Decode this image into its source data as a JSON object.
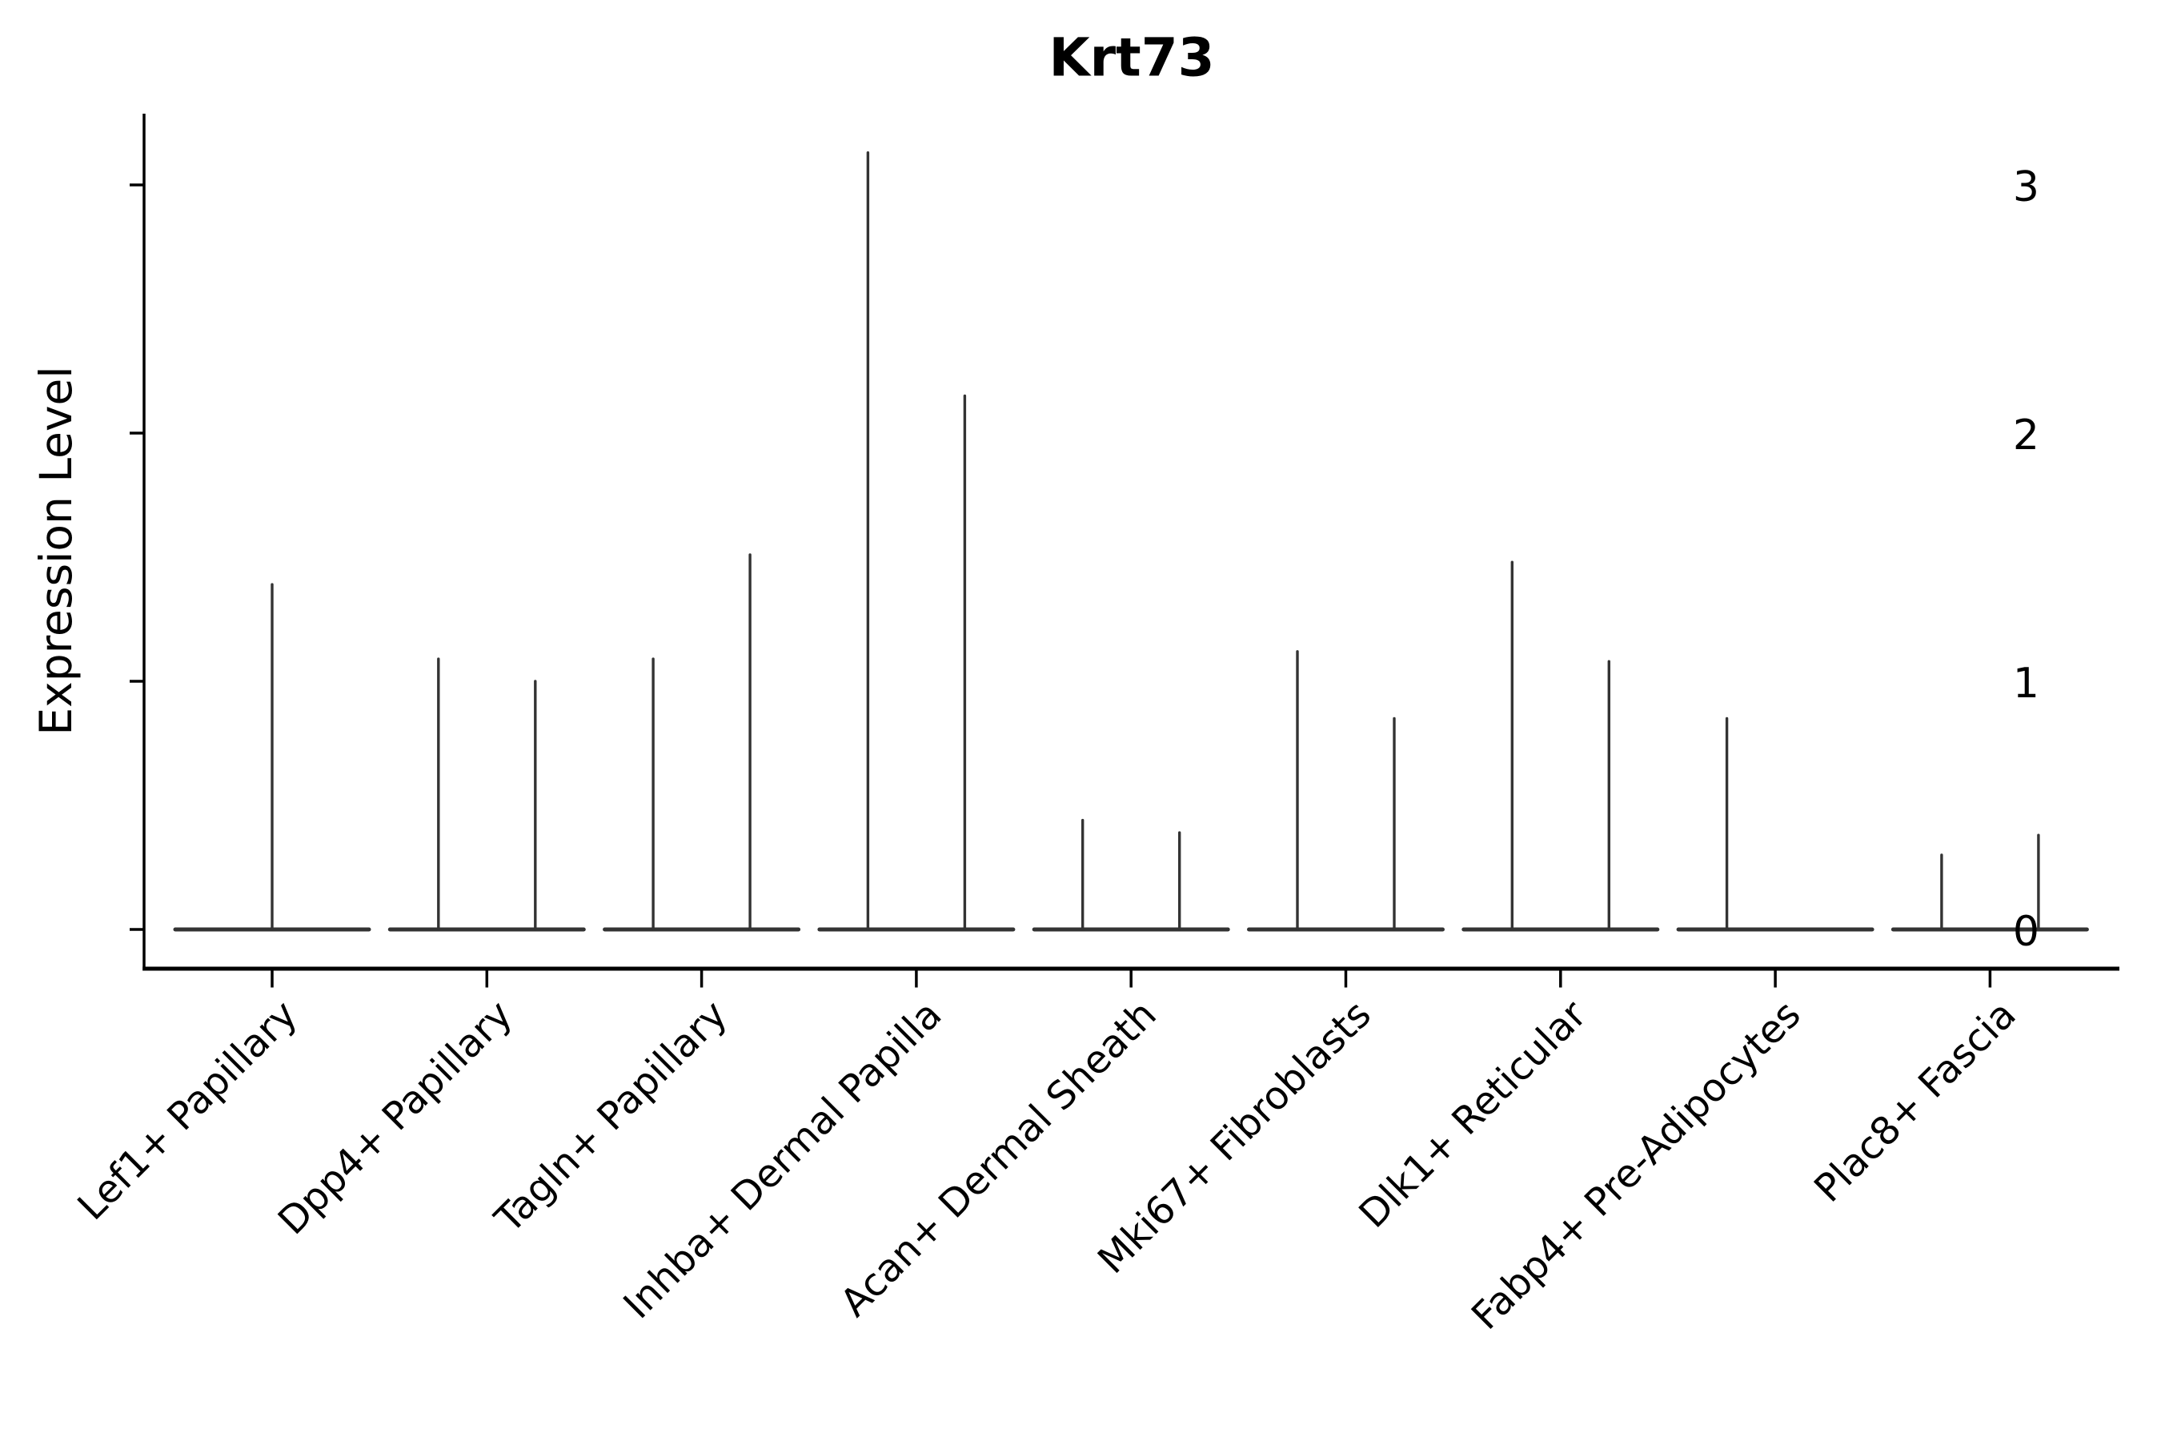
{
  "title": "Krt73",
  "y_axis": {
    "label": "Expression Level",
    "tick_labels": [
      "0",
      "1",
      "2",
      "3"
    ]
  },
  "x_axis": {
    "categories": [
      "Lef1+ Papillary",
      "Dpp4+ Papillary",
      "Tagln+ Papillary",
      "Inhba+ Dermal Papilla",
      "Acan+ Dermal Sheath",
      "Mki67+ Fibroblasts",
      "Dlk1+ Reticular",
      "Fabp4+ Pre-Adipocytes",
      "Plac8+ Fascia"
    ]
  },
  "colors": {
    "violin": "#333333",
    "axis": "#000000",
    "text": "#000000",
    "background": "#ffffff"
  },
  "chart_data": {
    "type": "violin",
    "title": "Krt73",
    "xlabel": "",
    "ylabel": "Expression Level",
    "yticks": [
      0,
      1,
      2,
      3
    ],
    "ylim": [
      -0.16,
      3.29
    ],
    "grid": false,
    "legend": "none",
    "description": "Single-cell expression violin plot; each violin collapses to a flat horizontal base at 0 with a thin vertical spike up to the maximum expression value. Most categories contain two side-by-side violins (left/right); some show a single violin.",
    "categories": [
      "Lef1+ Papillary",
      "Dpp4+ Papillary",
      "Tagln+ Papillary",
      "Inhba+ Dermal Papilla",
      "Acan+ Dermal Sheath",
      "Mki67+ Fibroblasts",
      "Dlk1+ Reticular",
      "Fabp4+ Pre-Adipocytes",
      "Plac8+ Fascia"
    ],
    "violins": [
      {
        "category": "Lef1+ Papillary",
        "baseline": 0,
        "spikes": [
          {
            "position": "center",
            "max": 1.39
          }
        ]
      },
      {
        "category": "Dpp4+ Papillary",
        "baseline": 0,
        "spikes": [
          {
            "position": "left",
            "max": 1.09
          },
          {
            "position": "right",
            "max": 1.0
          }
        ]
      },
      {
        "category": "Tagln+ Papillary",
        "baseline": 0,
        "spikes": [
          {
            "position": "left",
            "max": 1.09
          },
          {
            "position": "right",
            "max": 1.51
          }
        ]
      },
      {
        "category": "Inhba+ Dermal Papilla",
        "baseline": 0,
        "spikes": [
          {
            "position": "left",
            "max": 3.13
          },
          {
            "position": "right",
            "max": 2.15
          }
        ]
      },
      {
        "category": "Acan+ Dermal Sheath",
        "baseline": 0,
        "spikes": [
          {
            "position": "left",
            "max": 0.44
          },
          {
            "position": "right",
            "max": 0.39
          }
        ]
      },
      {
        "category": "Mki67+ Fibroblasts",
        "baseline": 0,
        "spikes": [
          {
            "position": "left",
            "max": 1.12
          },
          {
            "position": "right",
            "max": 0.85
          }
        ]
      },
      {
        "category": "Dlk1+ Reticular",
        "baseline": 0,
        "spikes": [
          {
            "position": "left",
            "max": 1.48
          },
          {
            "position": "right",
            "max": 1.08
          }
        ]
      },
      {
        "category": "Fabp4+ Pre-Adipocytes",
        "baseline": 0,
        "spikes": [
          {
            "position": "left",
            "max": 0.85
          }
        ]
      },
      {
        "category": "Plac8+ Fascia",
        "baseline": 0,
        "spikes": [
          {
            "position": "left",
            "max": 0.3
          },
          {
            "position": "right",
            "max": 0.38
          }
        ]
      }
    ]
  }
}
